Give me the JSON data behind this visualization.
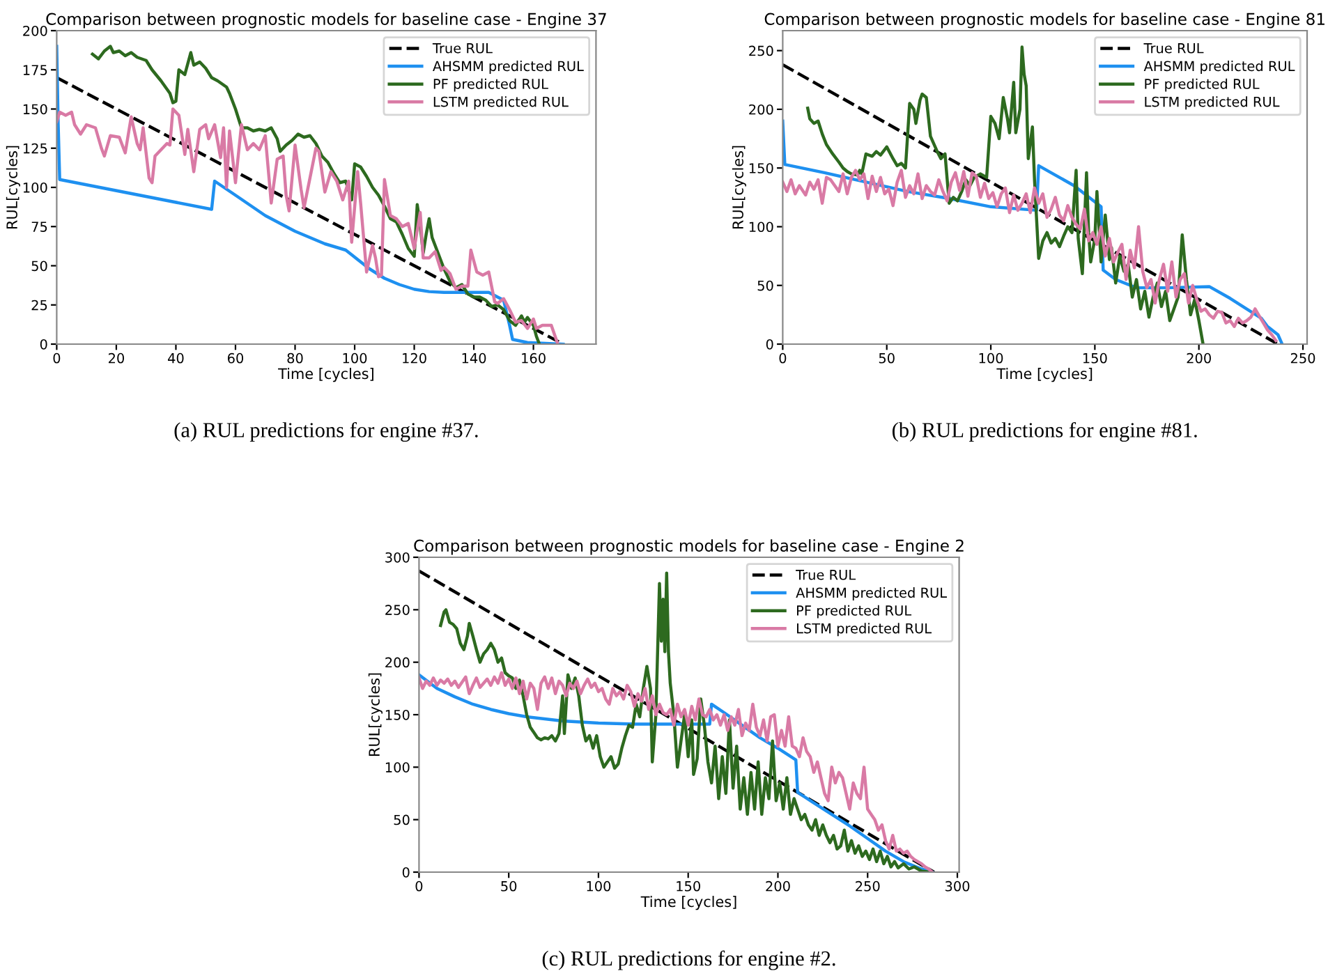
{
  "chart_data": [
    {
      "type": "line",
      "title": "Comparison between prognostic models for baseline case - Engine 37",
      "xlabel": "Time [cycles]",
      "ylabel": "RUL[cycles]",
      "annotations": [
        "(a) RUL predictions for engine #37."
      ],
      "xlim": [
        0,
        181
      ],
      "ylim": [
        0,
        200
      ],
      "xticks": [
        0,
        20,
        40,
        60,
        80,
        100,
        120,
        140,
        160
      ],
      "yticks": [
        0,
        25,
        50,
        75,
        100,
        125,
        150,
        175,
        200
      ],
      "legend": "top right",
      "grid": false,
      "series": [
        {
          "name": "True RUL",
          "color": "#000000",
          "line_style": "dashed",
          "x": [
            0,
            170
          ],
          "values": [
            170,
            0
          ]
        },
        {
          "name": "AHSMM predicted RUL",
          "color": "#1e90f0",
          "line_style": "solid",
          "x": [
            0,
            0.5,
            1,
            52,
            53,
            60,
            70,
            80,
            90,
            97,
            99,
            105,
            110,
            115,
            120,
            125,
            130,
            145,
            150,
            152,
            153,
            158,
            170
          ],
          "values": [
            190,
            140,
            105,
            86,
            104,
            95,
            82,
            72,
            64,
            60,
            57,
            48,
            42,
            38,
            35,
            33.5,
            33,
            33,
            28,
            12,
            3,
            1,
            0
          ]
        },
        {
          "name": "PF predicted RUL",
          "color": "#2d6a1f",
          "line_style": "solid",
          "x": [
            12,
            14,
            16,
            18,
            19,
            21,
            23,
            25,
            27,
            30,
            32,
            35,
            38,
            39,
            40,
            41,
            43,
            45,
            46,
            48,
            50,
            52,
            54,
            57,
            58,
            60,
            62,
            64,
            66,
            68,
            70,
            72,
            74,
            75,
            77,
            79,
            81,
            83,
            85,
            87,
            89,
            91,
            93,
            95,
            97,
            99,
            100,
            102,
            104,
            106,
            108,
            110,
            112,
            114,
            116,
            118,
            120,
            121,
            122,
            123,
            124,
            125,
            126,
            128,
            130,
            132,
            134,
            136,
            138,
            140,
            142,
            144,
            146,
            148,
            150,
            152,
            154,
            156,
            157,
            158,
            160,
            161,
            162
          ],
          "values": [
            185,
            182,
            187,
            190,
            186,
            187,
            184,
            186,
            183,
            181,
            175,
            168,
            160,
            154,
            155,
            175,
            172,
            186,
            178,
            180,
            176,
            170,
            168,
            164,
            160,
            150,
            138,
            138,
            136,
            137,
            136,
            138,
            131,
            123,
            127,
            130,
            134,
            132,
            133,
            128,
            120,
            116,
            109,
            103,
            104,
            92,
            115,
            113,
            107,
            100,
            95,
            88,
            80,
            78,
            70,
            61,
            56,
            89,
            76,
            58,
            70,
            80,
            68,
            58,
            48,
            40,
            36,
            38,
            32,
            30,
            30,
            28,
            24,
            25,
            22,
            15,
            12,
            18,
            14,
            17,
            12,
            5,
            0
          ]
        },
        {
          "name": "LSTM predicted RUL",
          "color": "#d97aa5",
          "line_style": "solid",
          "x": [
            0,
            1,
            3,
            5,
            6,
            8,
            10,
            13,
            15,
            16,
            18,
            21,
            23,
            25,
            27,
            28,
            29,
            31,
            32,
            33,
            35,
            37,
            38,
            39,
            41,
            43,
            44,
            46,
            48,
            50,
            51,
            53,
            55,
            56,
            57,
            58,
            60,
            62,
            64,
            66,
            68,
            70,
            72,
            74,
            76,
            77,
            78,
            80,
            82,
            83,
            85,
            87,
            88,
            90,
            92,
            94,
            96,
            98,
            99,
            101,
            102,
            104,
            106,
            107,
            108,
            109,
            110,
            112,
            114,
            116,
            118,
            120,
            122,
            123,
            125,
            127,
            129,
            130,
            132,
            134,
            136,
            138,
            139,
            141,
            143,
            145,
            147,
            148,
            150,
            152,
            154,
            156,
            158,
            160,
            161,
            163,
            166,
            168
          ],
          "values": [
            142,
            148,
            146,
            148,
            140,
            134,
            140,
            138,
            125,
            120,
            133,
            132,
            122,
            145,
            128,
            124,
            138,
            106,
            103,
            120,
            124,
            128,
            127,
            150,
            146,
            121,
            137,
            110,
            137,
            140,
            131,
            140,
            119,
            138,
            100,
            136,
            103,
            140,
            124,
            128,
            124,
            133,
            90,
            118,
            120,
            95,
            85,
            127,
            99,
            87,
            106,
            125,
            123,
            97,
            110,
            104,
            92,
            104,
            65,
            110,
            90,
            46,
            63,
            55,
            43,
            44,
            105,
            82,
            80,
            75,
            77,
            61,
            84,
            55,
            55,
            59,
            47,
            49,
            45,
            35,
            37,
            37,
            60,
            46,
            44,
            46,
            27,
            26,
            29,
            22,
            14,
            15,
            10,
            16,
            10,
            12,
            12,
            1
          ]
        }
      ]
    },
    {
      "type": "line",
      "title": "Comparison between prognostic models for baseline case - Engine 81",
      "xlabel": "Time [cycles]",
      "ylabel": "RUL[cycles]",
      "annotations": [
        "(b) RUL predictions for engine #81."
      ],
      "xlim": [
        0,
        252
      ],
      "ylim": [
        0,
        267
      ],
      "xticks": [
        0,
        50,
        100,
        150,
        200,
        250
      ],
      "yticks": [
        0,
        50,
        100,
        150,
        200,
        250
      ],
      "legend": "top right",
      "grid": false,
      "series": [
        {
          "name": "True RUL",
          "color": "#000000",
          "line_style": "dashed",
          "x": [
            0,
            238
          ],
          "values": [
            238,
            0
          ]
        },
        {
          "name": "AHSMM predicted RUL",
          "color": "#1e90f0",
          "line_style": "solid",
          "x": [
            0,
            1,
            20,
            40,
            60,
            80,
            100,
            122,
            123,
            140,
            153,
            154,
            160,
            170,
            185,
            205,
            215,
            230,
            233,
            238,
            240
          ],
          "values": [
            190,
            153,
            146,
            138,
            130,
            124,
            117,
            114,
            152,
            135,
            117,
            63,
            55,
            48,
            48,
            49,
            39,
            22,
            15,
            8,
            0
          ]
        },
        {
          "name": "PF predicted RUL",
          "color": "#2d6a1f",
          "line_style": "solid",
          "x": [
            12,
            13,
            15,
            17,
            19,
            21,
            24,
            27,
            29,
            31,
            33,
            36,
            37,
            38,
            40,
            43,
            45,
            47,
            50,
            53,
            55,
            57,
            59,
            61,
            63,
            64,
            66,
            67,
            69,
            71,
            74,
            76,
            78,
            80,
            82,
            84,
            86,
            88,
            90,
            92,
            95,
            98,
            100,
            102,
            104,
            106,
            108,
            109,
            111,
            112,
            114,
            115,
            116,
            117,
            118,
            120,
            121,
            123,
            125,
            127,
            129,
            131,
            133,
            135,
            137,
            139,
            141,
            142,
            144,
            146,
            147,
            148,
            150,
            151,
            153,
            155,
            157,
            158,
            160,
            162,
            164,
            166,
            168,
            170,
            172,
            174,
            176,
            178,
            180,
            182,
            184,
            186,
            188,
            190,
            192,
            194,
            196,
            198,
            200,
            202
          ],
          "values": [
            201,
            192,
            188,
            190,
            179,
            170,
            162,
            155,
            150,
            147,
            145,
            144,
            148,
            145,
            162,
            160,
            164,
            161,
            168,
            158,
            152,
            154,
            150,
            205,
            200,
            188,
            208,
            213,
            210,
            177,
            165,
            158,
            162,
            120,
            125,
            122,
            130,
            140,
            135,
            142,
            145,
            142,
            194,
            188,
            175,
            210,
            192,
            180,
            223,
            180,
            200,
            253,
            230,
            220,
            158,
            185,
            140,
            73,
            88,
            95,
            86,
            90,
            83,
            92,
            100,
            95,
            148,
            90,
            60,
            146,
            95,
            70,
            90,
            130,
            70,
            110,
            72,
            82,
            52,
            75,
            62,
            68,
            40,
            55,
            30,
            45,
            23,
            40,
            52,
            32,
            45,
            20,
            30,
            40,
            93,
            55,
            25,
            38,
            20,
            0
          ]
        },
        {
          "name": "LSTM predicted RUL",
          "color": "#d97aa5",
          "line_style": "solid",
          "x": [
            0,
            2,
            4,
            6,
            8,
            11,
            13,
            15,
            17,
            19,
            21,
            23,
            25,
            27,
            29,
            31,
            33,
            35,
            37,
            39,
            41,
            43,
            45,
            47,
            49,
            51,
            53,
            55,
            57,
            59,
            61,
            63,
            65,
            67,
            69,
            71,
            73,
            75,
            77,
            79,
            81,
            83,
            85,
            87,
            89,
            91,
            93,
            95,
            97,
            99,
            101,
            103,
            105,
            107,
            109,
            111,
            113,
            115,
            117,
            119,
            121,
            123,
            125,
            127,
            129,
            131,
            133,
            135,
            137,
            139,
            141,
            143,
            145,
            147,
            149,
            151,
            153,
            155,
            157,
            159,
            161,
            163,
            165,
            167,
            169,
            171,
            173,
            175,
            177,
            179,
            181,
            183,
            185,
            187,
            189,
            191,
            193,
            195,
            197,
            199,
            201,
            203,
            205,
            207,
            209,
            211,
            213,
            215,
            217,
            219,
            221,
            223,
            225,
            227,
            229,
            231,
            233,
            235,
            237
          ],
          "values": [
            138,
            130,
            140,
            128,
            135,
            127,
            138,
            132,
            140,
            120,
            142,
            140,
            135,
            130,
            145,
            128,
            142,
            148,
            140,
            145,
            124,
            143,
            130,
            142,
            128,
            132,
            118,
            138,
            148,
            125,
            135,
            128,
            145,
            124,
            135,
            130,
            127,
            140,
            130,
            122,
            138,
            146,
            131,
            147,
            126,
            146,
            143,
            125,
            137,
            124,
            129,
            117,
            128,
            133,
            112,
            127,
            114,
            120,
            128,
            112,
            133,
            120,
            128,
            108,
            115,
            125,
            110,
            105,
            118,
            108,
            102,
            98,
            115,
            88,
            95,
            85,
            100,
            75,
            90,
            70,
            78,
            85,
            55,
            80,
            65,
            100,
            62,
            48,
            55,
            35,
            55,
            68,
            45,
            70,
            40,
            55,
            60,
            35,
            50,
            38,
            28,
            30,
            25,
            22,
            28,
            27,
            18,
            20,
            15,
            22,
            18,
            20,
            23,
            30,
            24,
            18,
            12,
            8,
            3
          ]
        }
      ]
    },
    {
      "type": "line",
      "title": "Comparison between prognostic models for baseline case - Engine 2",
      "xlabel": "Time [cycles]",
      "ylabel": "RUL[cycles]",
      "annotations": [
        "(c) RUL predictions for engine #2."
      ],
      "xlim": [
        0,
        301
      ],
      "ylim": [
        0,
        300
      ],
      "xticks": [
        0,
        50,
        100,
        150,
        200,
        250,
        300
      ],
      "yticks": [
        0,
        50,
        100,
        150,
        200,
        250,
        300
      ],
      "legend": "top right",
      "grid": false,
      "series": [
        {
          "name": "True RUL",
          "color": "#000000",
          "line_style": "dashed",
          "x": [
            0,
            287
          ],
          "values": [
            287,
            0
          ]
        },
        {
          "name": "AHSMM predicted RUL",
          "color": "#1e90f0",
          "line_style": "solid",
          "x": [
            0,
            10,
            20,
            30,
            40,
            50,
            60,
            80,
            100,
            120,
            140,
            162,
            163,
            170,
            180,
            190,
            200,
            210,
            211,
            220,
            230,
            240,
            250,
            260,
            270,
            280,
            286
          ],
          "values": [
            188,
            175,
            167,
            160,
            155,
            151,
            148,
            144,
            142,
            141,
            141,
            141,
            160,
            152,
            140,
            128,
            118,
            107,
            76,
            66,
            55,
            44,
            32,
            20,
            10,
            3,
            0
          ]
        },
        {
          "name": "PF predicted RUL",
          "color": "#2d6a1f",
          "line_style": "solid",
          "x": [
            12,
            14,
            15,
            17,
            19,
            21,
            23,
            25,
            27,
            28,
            30,
            32,
            34,
            36,
            38,
            40,
            42,
            44,
            46,
            48,
            50,
            52,
            54,
            56,
            58,
            60,
            62,
            64,
            66,
            68,
            70,
            72,
            74,
            76,
            78,
            80,
            81,
            83,
            85,
            87,
            89,
            91,
            93,
            95,
            97,
            99,
            101,
            103,
            105,
            107,
            109,
            111,
            113,
            115,
            117,
            119,
            121,
            123,
            125,
            127,
            129,
            130,
            132,
            134,
            135,
            136,
            137,
            138,
            139,
            140,
            142,
            144,
            146,
            148,
            150,
            152,
            153,
            155,
            157,
            159,
            161,
            163,
            165,
            167,
            169,
            171,
            173,
            175,
            177,
            179,
            181,
            183,
            185,
            187,
            189,
            191,
            193,
            195,
            197,
            199,
            201,
            203,
            205,
            207,
            209,
            211,
            213,
            215,
            217,
            219,
            221,
            223,
            225,
            227,
            229,
            231,
            233,
            235,
            237,
            239,
            241,
            243,
            245,
            247,
            249,
            251,
            253,
            255,
            257,
            259,
            261,
            263,
            265,
            267,
            270,
            273,
            276,
            280,
            284
          ],
          "values": [
            235,
            248,
            250,
            238,
            236,
            232,
            218,
            212,
            225,
            237,
            225,
            212,
            200,
            208,
            212,
            218,
            212,
            200,
            204,
            190,
            187,
            185,
            175,
            183,
            168,
            150,
            138,
            133,
            128,
            126,
            128,
            127,
            130,
            125,
            132,
            168,
            132,
            188,
            175,
            185,
            168,
            140,
            125,
            130,
            118,
            130,
            110,
            100,
            105,
            110,
            99,
            103,
            118,
            130,
            140,
            138,
            160,
            148,
            175,
            196,
            175,
            105,
            150,
            275,
            220,
            260,
            210,
            285,
            210,
            180,
            150,
            100,
            125,
            150,
            110,
            145,
            93,
            108,
            165,
            140,
            105,
            85,
            120,
            70,
            110,
            75,
            145,
            80,
            120,
            60,
            90,
            55,
            95,
            60,
            105,
            55,
            90,
            70,
            125,
            68,
            85,
            60,
            90,
            55,
            70,
            60,
            50,
            55,
            45,
            40,
            50,
            35,
            45,
            35,
            28,
            35,
            22,
            25,
            40,
            20,
            30,
            18,
            25,
            15,
            20,
            12,
            22,
            10,
            20,
            8,
            15,
            5,
            10,
            4,
            8,
            3,
            5,
            1,
            0
          ]
        },
        {
          "name": "LSTM predicted RUL",
          "color": "#d97aa5",
          "line_style": "solid",
          "x": [
            0,
            2,
            4,
            6,
            8,
            10,
            12,
            14,
            16,
            18,
            20,
            22,
            24,
            26,
            28,
            30,
            32,
            34,
            36,
            38,
            40,
            42,
            44,
            46,
            48,
            50,
            52,
            54,
            56,
            58,
            60,
            62,
            64,
            66,
            68,
            70,
            72,
            74,
            76,
            78,
            80,
            82,
            84,
            86,
            88,
            90,
            92,
            94,
            96,
            98,
            100,
            102,
            104,
            106,
            108,
            110,
            112,
            114,
            116,
            118,
            120,
            122,
            124,
            126,
            128,
            130,
            132,
            134,
            136,
            138,
            140,
            142,
            144,
            146,
            148,
            150,
            152,
            154,
            156,
            158,
            160,
            162,
            164,
            166,
            168,
            170,
            172,
            174,
            176,
            178,
            180,
            182,
            184,
            186,
            188,
            190,
            192,
            194,
            196,
            198,
            200,
            202,
            204,
            206,
            208,
            210,
            212,
            214,
            216,
            218,
            220,
            222,
            224,
            226,
            228,
            230,
            232,
            234,
            236,
            238,
            240,
            242,
            244,
            246,
            248,
            250,
            252,
            254,
            256,
            258,
            260,
            262,
            264,
            266,
            268,
            270,
            272,
            274,
            276,
            278,
            280,
            282,
            284,
            286
          ],
          "values": [
            185,
            175,
            182,
            178,
            185,
            178,
            183,
            180,
            184,
            178,
            182,
            176,
            181,
            186,
            170,
            178,
            185,
            176,
            180,
            184,
            178,
            186,
            180,
            190,
            178,
            184,
            175,
            185,
            170,
            182,
            165,
            180,
            175,
            155,
            180,
            186,
            175,
            185,
            170,
            182,
            178,
            168,
            180,
            175,
            182,
            170,
            178,
            184,
            176,
            180,
            172,
            175,
            165,
            160,
            175,
            168,
            172,
            165,
            178,
            172,
            158,
            170,
            163,
            175,
            155,
            168,
            150,
            160,
            152,
            150,
            155,
            140,
            160,
            148,
            155,
            140,
            158,
            145,
            165,
            150,
            148,
            155,
            145,
            150,
            140,
            150,
            135,
            148,
            140,
            155,
            130,
            142,
            135,
            160,
            138,
            130,
            145,
            125,
            148,
            150,
            120,
            135,
            120,
            148,
            120,
            118,
            110,
            128,
            115,
            110,
            95,
            105,
            90,
            75,
            68,
            100,
            85,
            95,
            90,
            75,
            60,
            85,
            75,
            70,
            100,
            60,
            55,
            50,
            40,
            45,
            30,
            22,
            35,
            20,
            22,
            18,
            20,
            15,
            12,
            10,
            8,
            5,
            3,
            0
          ]
        }
      ]
    }
  ]
}
